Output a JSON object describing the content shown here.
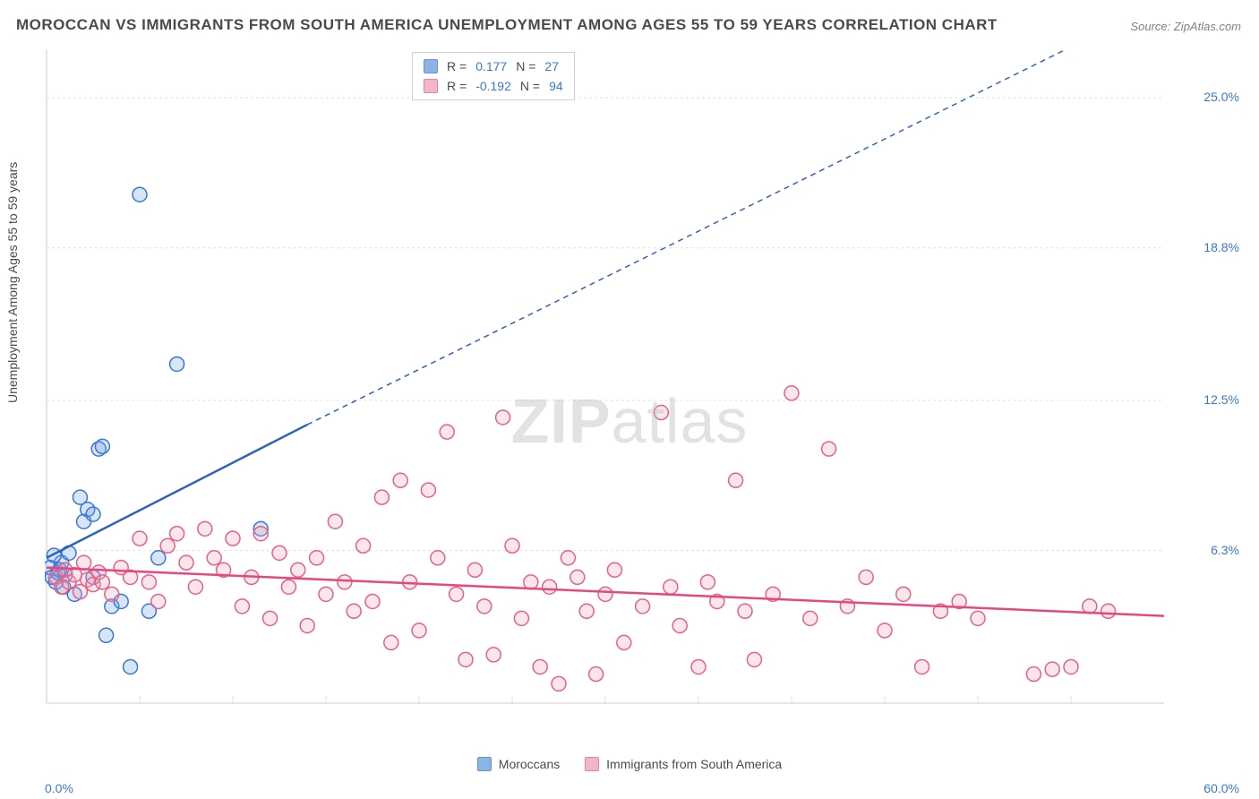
{
  "title": "MOROCCAN VS IMMIGRANTS FROM SOUTH AMERICA UNEMPLOYMENT AMONG AGES 55 TO 59 YEARS CORRELATION CHART",
  "source": "Source: ZipAtlas.com",
  "ylabel": "Unemployment Among Ages 55 to 59 years",
  "watermark_bold": "ZIP",
  "watermark_rest": "atlas",
  "chart": {
    "type": "scatter",
    "background_color": "#ffffff",
    "grid_color": "#e0e0e0",
    "axis_color": "#cccccc",
    "xlim": [
      0,
      60
    ],
    "ylim": [
      0,
      27
    ],
    "x_start_label": "0.0%",
    "x_end_label": "60.0%",
    "y_grid_ticks": [
      6.3,
      12.5,
      18.8,
      25.0
    ],
    "y_grid_labels": [
      "6.3%",
      "12.5%",
      "18.8%",
      "25.0%"
    ],
    "x_minor_ticks": [
      5,
      10,
      15,
      20,
      25,
      30,
      35,
      40,
      45,
      50,
      55
    ],
    "marker_radius": 8,
    "marker_stroke_width": 1.5,
    "marker_fill_opacity": 0.28,
    "line_width": 2.5,
    "dash_pattern": "6 5",
    "series": [
      {
        "name": "Moroccans",
        "color": "#6fa1dd",
        "stroke": "#3978d6",
        "line_color": "#2b62c0",
        "R": "0.177",
        "N": "27",
        "regression": {
          "x1": 0,
          "y1": 6.0,
          "x2": 14,
          "y2": 11.5,
          "x2_dash": 60,
          "y2_dash": 29
        },
        "points": [
          [
            0.2,
            5.6
          ],
          [
            0.3,
            5.2
          ],
          [
            0.5,
            5.0
          ],
          [
            0.6,
            5.4
          ],
          [
            0.8,
            5.8
          ],
          [
            0.9,
            4.8
          ],
          [
            1.0,
            5.3
          ],
          [
            1.2,
            6.2
          ],
          [
            1.5,
            4.5
          ],
          [
            2.0,
            7.5
          ],
          [
            2.2,
            8.0
          ],
          [
            2.5,
            7.8
          ],
          [
            2.8,
            10.5
          ],
          [
            3.0,
            10.6
          ],
          [
            3.2,
            2.8
          ],
          [
            3.5,
            4.0
          ],
          [
            4.0,
            4.2
          ],
          [
            4.5,
            1.5
          ],
          [
            5.0,
            21.0
          ],
          [
            5.5,
            3.8
          ],
          [
            6.0,
            6.0
          ],
          [
            7.0,
            14.0
          ],
          [
            11.5,
            7.2
          ],
          [
            2.5,
            5.2
          ],
          [
            1.8,
            8.5
          ],
          [
            0.4,
            6.1
          ],
          [
            0.7,
            5.5
          ]
        ]
      },
      {
        "name": "Immigrants from South America",
        "color": "#f0a4b9",
        "stroke": "#e85f89",
        "line_color": "#e64783",
        "R": "-0.192",
        "N": "94",
        "regression": {
          "x1": 0,
          "y1": 5.6,
          "x2": 60,
          "y2": 3.6
        },
        "points": [
          [
            0.5,
            5.2
          ],
          [
            0.8,
            4.8
          ],
          [
            1.0,
            5.5
          ],
          [
            1.2,
            5.0
          ],
          [
            1.5,
            5.3
          ],
          [
            1.8,
            4.6
          ],
          [
            2.0,
            5.8
          ],
          [
            2.2,
            5.1
          ],
          [
            2.5,
            4.9
          ],
          [
            2.8,
            5.4
          ],
          [
            3.0,
            5.0
          ],
          [
            3.5,
            4.5
          ],
          [
            4.0,
            5.6
          ],
          [
            4.5,
            5.2
          ],
          [
            5.0,
            6.8
          ],
          [
            5.5,
            5.0
          ],
          [
            6.0,
            4.2
          ],
          [
            6.5,
            6.5
          ],
          [
            7.0,
            7.0
          ],
          [
            7.5,
            5.8
          ],
          [
            8.0,
            4.8
          ],
          [
            8.5,
            7.2
          ],
          [
            9.0,
            6.0
          ],
          [
            9.5,
            5.5
          ],
          [
            10.0,
            6.8
          ],
          [
            10.5,
            4.0
          ],
          [
            11.0,
            5.2
          ],
          [
            11.5,
            7.0
          ],
          [
            12.0,
            3.5
          ],
          [
            12.5,
            6.2
          ],
          [
            13.0,
            4.8
          ],
          [
            13.5,
            5.5
          ],
          [
            14.0,
            3.2
          ],
          [
            14.5,
            6.0
          ],
          [
            15.0,
            4.5
          ],
          [
            15.5,
            7.5
          ],
          [
            16.0,
            5.0
          ],
          [
            16.5,
            3.8
          ],
          [
            17.0,
            6.5
          ],
          [
            17.5,
            4.2
          ],
          [
            18.0,
            8.5
          ],
          [
            18.5,
            2.5
          ],
          [
            19.0,
            9.2
          ],
          [
            19.5,
            5.0
          ],
          [
            20.0,
            3.0
          ],
          [
            20.5,
            8.8
          ],
          [
            21.0,
            6.0
          ],
          [
            21.5,
            11.2
          ],
          [
            22.0,
            4.5
          ],
          [
            22.5,
            1.8
          ],
          [
            23.0,
            5.5
          ],
          [
            23.5,
            4.0
          ],
          [
            24.0,
            2.0
          ],
          [
            24.5,
            11.8
          ],
          [
            25.0,
            6.5
          ],
          [
            25.5,
            3.5
          ],
          [
            26.0,
            5.0
          ],
          [
            26.5,
            1.5
          ],
          [
            27.0,
            4.8
          ],
          [
            27.5,
            0.8
          ],
          [
            28.0,
            6.0
          ],
          [
            28.5,
            5.2
          ],
          [
            29.0,
            3.8
          ],
          [
            29.5,
            1.2
          ],
          [
            30.0,
            4.5
          ],
          [
            30.5,
            5.5
          ],
          [
            31.0,
            2.5
          ],
          [
            32.0,
            4.0
          ],
          [
            33.0,
            12.0
          ],
          [
            33.5,
            4.8
          ],
          [
            34.0,
            3.2
          ],
          [
            35.0,
            1.5
          ],
          [
            35.5,
            5.0
          ],
          [
            36.0,
            4.2
          ],
          [
            37.0,
            9.2
          ],
          [
            37.5,
            3.8
          ],
          [
            38.0,
            1.8
          ],
          [
            39.0,
            4.5
          ],
          [
            40.0,
            12.8
          ],
          [
            41.0,
            3.5
          ],
          [
            42.0,
            10.5
          ],
          [
            43.0,
            4.0
          ],
          [
            44.0,
            5.2
          ],
          [
            45.0,
            3.0
          ],
          [
            46.0,
            4.5
          ],
          [
            47.0,
            1.5
          ],
          [
            48.0,
            3.8
          ],
          [
            49.0,
            4.2
          ],
          [
            50.0,
            3.5
          ],
          [
            53.0,
            1.2
          ],
          [
            54.0,
            1.4
          ],
          [
            55.0,
            1.5
          ],
          [
            56.0,
            4.0
          ],
          [
            57.0,
            3.8
          ]
        ]
      }
    ]
  },
  "legend_top": {
    "R_label": "R  =",
    "N_label": "N  ="
  },
  "legend_bottom": {
    "items": [
      "Moroccans",
      "Immigrants from South America"
    ]
  }
}
